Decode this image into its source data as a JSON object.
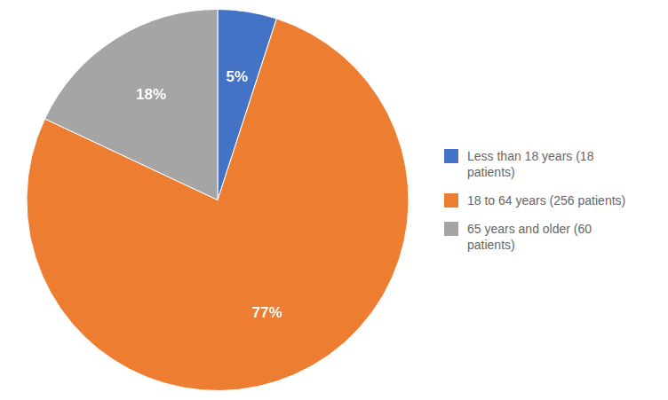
{
  "chart_data": {
    "type": "pie",
    "categories": [
      "Less than 18 years (18\npatients)",
      "18 to 64 years (256 patients)",
      "65 years and older (60\npatients)"
    ],
    "values": [
      5,
      77,
      18
    ],
    "value_labels": [
      "5%",
      "77%",
      "18%"
    ],
    "colors": [
      "#4472C4",
      "#ED7D31",
      "#A5A5A5"
    ],
    "data_labels": true,
    "legend": "right"
  }
}
